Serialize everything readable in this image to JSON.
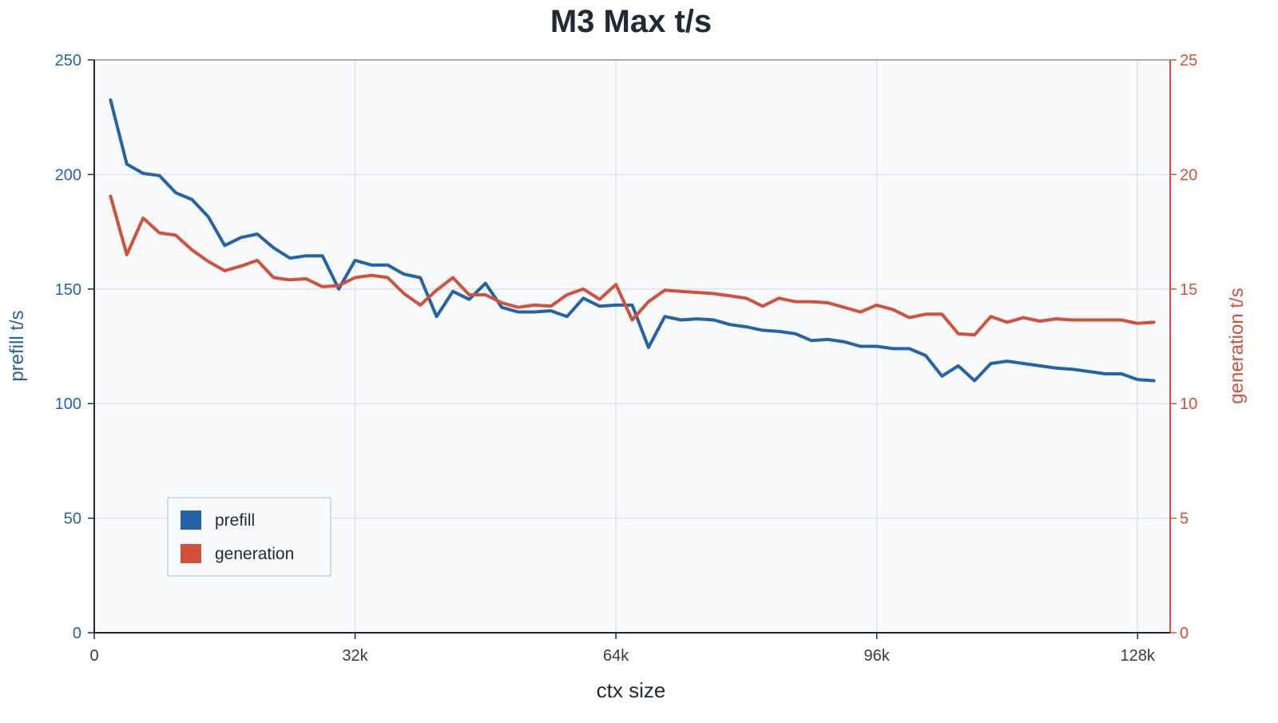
{
  "chart_data": {
    "type": "line",
    "title": "M3 Max t/s",
    "xlabel": "ctx size",
    "ylabel": "prefill t/s",
    "y2label": "generation t/s",
    "xlim": [
      0,
      132000
    ],
    "ylim": [
      0,
      250
    ],
    "y2lim": [
      0,
      25
    ],
    "xticks": [
      0,
      32000,
      64000,
      96000,
      128000
    ],
    "xtick_labels": [
      "0",
      "32k",
      "64k",
      "96k",
      "128k"
    ],
    "yticks": [
      0,
      50,
      100,
      150,
      200,
      250
    ],
    "y2ticks": [
      0,
      5,
      10,
      15,
      20,
      25
    ],
    "grid": true,
    "legend_position": "bottom-left",
    "x": [
      2000,
      4000,
      6000,
      8000,
      10000,
      12000,
      14000,
      16000,
      18000,
      20000,
      22000,
      24000,
      26000,
      28000,
      30000,
      32000,
      34000,
      36000,
      38000,
      40000,
      42000,
      44000,
      46000,
      48000,
      50000,
      52000,
      54000,
      56000,
      58000,
      60000,
      62000,
      64000,
      66000,
      68000,
      70000,
      72000,
      74000,
      76000,
      78000,
      80000,
      82000,
      84000,
      86000,
      88000,
      90000,
      92000,
      94000,
      96000,
      98000,
      100000,
      102000,
      104000,
      106000,
      108000,
      110000,
      112000,
      114000,
      116000,
      118000,
      120000,
      122000,
      124000,
      126000,
      128000,
      130000
    ],
    "series": [
      {
        "name": "prefill",
        "axis": "left",
        "color": "#2563a8",
        "values": [
          232.5,
          204.5,
          200.5,
          199.5,
          192,
          189,
          181.5,
          169,
          172.5,
          174,
          168,
          163.5,
          164.5,
          164.5,
          150,
          162.5,
          160.5,
          160.5,
          156.5,
          155,
          138,
          149,
          145.5,
          152.5,
          142,
          140,
          140,
          140.5,
          138,
          146,
          142.5,
          143,
          143,
          124.5,
          138,
          136.5,
          137,
          136.5,
          134.5,
          133.5,
          132,
          131.5,
          130.5,
          127.5,
          128,
          127,
          125,
          125,
          124,
          124,
          121,
          112,
          116.5,
          110,
          117.5,
          118.5,
          117.5,
          116.5,
          115.5,
          115,
          114,
          113,
          113,
          110.5,
          110
        ]
      },
      {
        "name": "generation",
        "axis": "right",
        "color": "#d2503c",
        "values": [
          19.05,
          16.5,
          18.1,
          17.45,
          17.35,
          16.7,
          16.2,
          15.8,
          16.0,
          16.25,
          15.5,
          15.4,
          15.45,
          15.1,
          15.15,
          15.5,
          15.6,
          15.5,
          14.8,
          14.3,
          14.95,
          15.5,
          14.75,
          14.75,
          14.4,
          14.2,
          14.3,
          14.25,
          14.75,
          15.0,
          14.55,
          15.2,
          13.65,
          14.45,
          14.95,
          14.9,
          14.85,
          14.8,
          14.7,
          14.6,
          14.25,
          14.6,
          14.45,
          14.45,
          14.4,
          14.2,
          14.0,
          14.3,
          14.1,
          13.75,
          13.9,
          13.9,
          13.05,
          13.0,
          13.8,
          13.55,
          13.75,
          13.6,
          13.7,
          13.65,
          13.65,
          13.65,
          13.65,
          13.5,
          13.55
        ]
      }
    ]
  }
}
